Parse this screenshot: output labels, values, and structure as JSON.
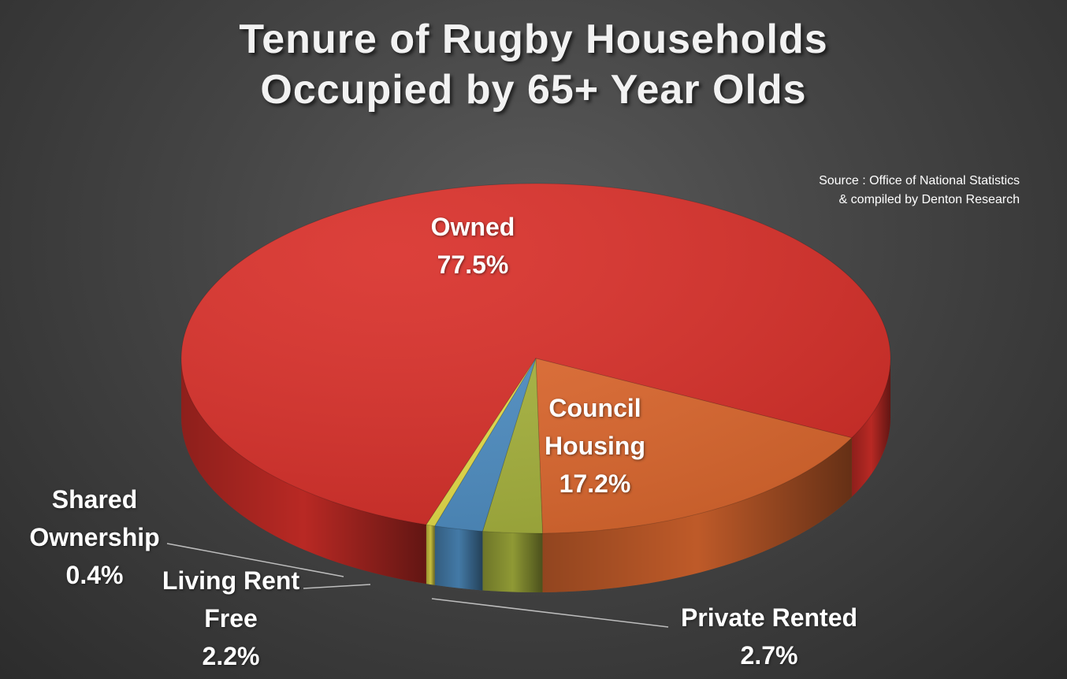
{
  "chart_data": {
    "type": "pie",
    "title_lines": [
      "Tenure of Rugby Households",
      "Occupied by 65+ Year Olds"
    ],
    "source_lines": [
      "Source : Office of National Statistics",
      "& compiled by Denton Research"
    ],
    "slices": [
      {
        "label_lines": [
          "Owned"
        ],
        "value": 77.5,
        "value_label": "77.5%",
        "color": "#d9302a"
      },
      {
        "label_lines": [
          "Council",
          "Housing"
        ],
        "value": 17.2,
        "value_label": "17.2%",
        "color": "#e06a30"
      },
      {
        "label_lines": [
          "Private Rented"
        ],
        "value": 2.7,
        "value_label": "2.7%",
        "color": "#a8b43e"
      },
      {
        "label_lines": [
          "Living Rent",
          "Free"
        ],
        "value": 2.2,
        "value_label": "2.2%",
        "color": "#4f8fc4"
      },
      {
        "label_lines": [
          "Shared",
          "Ownership"
        ],
        "value": 0.4,
        "value_label": "0.4%",
        "color": "#e8e04a"
      }
    ],
    "background": "#444444",
    "style": "3d"
  }
}
